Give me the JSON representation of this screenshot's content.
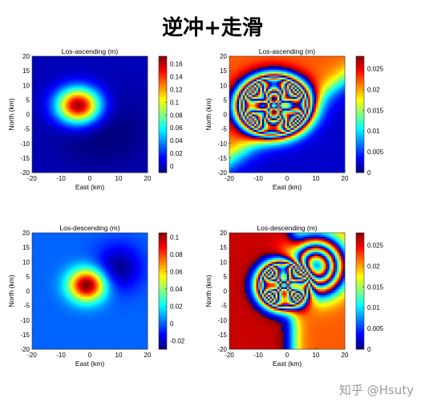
{
  "title": "逆冲+走滑",
  "watermark": "知乎 @Hsuty",
  "chart_data": [
    {
      "type": "heatmap",
      "title": "Los-ascending (m)",
      "xlabel": "East (km)",
      "ylabel": "North (km)",
      "xlim": [
        -20,
        20
      ],
      "ylim": [
        -20,
        20
      ],
      "xticks": [
        "-20",
        "-10",
        "0",
        "10",
        "20"
      ],
      "yticks": [
        "20",
        "15",
        "10",
        "5",
        "0",
        "-5",
        "-10",
        "-15",
        "-20"
      ],
      "colorbar_ticks": [
        "0.16",
        "0.14",
        "0.12",
        "0.1",
        "0.08",
        "0.06",
        "0.04",
        "0.02",
        "0"
      ],
      "colorbar_range": [
        -0.01,
        0.172
      ],
      "peak": {
        "x": -4,
        "y": 3,
        "value": 0.17
      },
      "colormap": "jet",
      "wrapped": false
    },
    {
      "type": "heatmap",
      "title": "Los-ascending (m)",
      "xlabel": "East (km)",
      "ylabel": "North (km)",
      "xlim": [
        -20,
        20
      ],
      "ylim": [
        -20,
        20
      ],
      "xticks": [
        "-20",
        "-10",
        "0",
        "10",
        "20"
      ],
      "yticks": [
        "20",
        "15",
        "10",
        "5",
        "0",
        "-5",
        "-10",
        "-15",
        "-20"
      ],
      "colorbar_ticks": [
        "0.025",
        "0.02",
        "0.015",
        "0.01",
        "0.005",
        "0"
      ],
      "colorbar_range": [
        0,
        0.028
      ],
      "colormap": "jet",
      "wrapped": true
    },
    {
      "type": "heatmap",
      "title": "Los-descending (m)",
      "xlabel": "East (km)",
      "ylabel": "North (km)",
      "xlim": [
        -20,
        20
      ],
      "ylim": [
        -20,
        20
      ],
      "xticks": [
        "-20",
        "-10",
        "0",
        "10",
        "20"
      ],
      "yticks": [
        "20",
        "15",
        "10",
        "5",
        "0",
        "-5",
        "-10",
        "-15",
        "-20"
      ],
      "colorbar_ticks": [
        "0.1",
        "0.08",
        "0.06",
        "0.04",
        "0.02",
        "0",
        "-0.02"
      ],
      "colorbar_range": [
        -0.03,
        0.105
      ],
      "peak": {
        "x": -1,
        "y": 2,
        "value": 0.1
      },
      "trough": {
        "x": 10,
        "y": 8,
        "value": -0.03
      },
      "colormap": "jet",
      "wrapped": false
    },
    {
      "type": "heatmap",
      "title": "Los-descending (m)",
      "xlabel": "East (km)",
      "ylabel": "North (km)",
      "xlim": [
        -20,
        20
      ],
      "ylim": [
        -20,
        20
      ],
      "xticks": [
        "-20",
        "-10",
        "0",
        "10",
        "20"
      ],
      "yticks": [
        "20",
        "15",
        "10",
        "5",
        "0",
        "-5",
        "-10",
        "-15",
        "-20"
      ],
      "colorbar_ticks": [
        "0.025",
        "0.02",
        "0.015",
        "0.01",
        "0.005",
        "0"
      ],
      "colorbar_range": [
        0,
        0.028
      ],
      "colormap": "jet",
      "wrapped": true
    }
  ]
}
